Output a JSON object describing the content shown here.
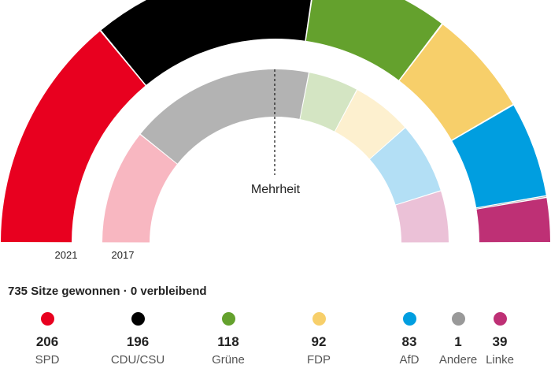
{
  "chart_data": {
    "type": "parliament-semicircle",
    "majority_label": "Mehrheit",
    "outer_ring_label": "2021",
    "inner_ring_label": "2017",
    "parties": [
      {
        "name": "SPD",
        "color": "#e8001f",
        "seats_2021": 206,
        "share_2017": 0.215
      },
      {
        "name": "CDU/CSU",
        "color": "#000000",
        "seats_2021": 196,
        "share_2017": 0.347
      },
      {
        "name": "Grüne",
        "color": "#64a12d",
        "seats_2021": 118,
        "share_2017": 0.094
      },
      {
        "name": "FDP",
        "color": "#f7cf6a",
        "seats_2021": 92,
        "share_2017": 0.113
      },
      {
        "name": "AfD",
        "color": "#009ee0",
        "seats_2021": 83,
        "share_2017": 0.134
      },
      {
        "name": "Andere",
        "color": "#999999",
        "seats_2021": 1,
        "share_2017": 0.0
      },
      {
        "name": "Linke",
        "color": "#be3075",
        "seats_2021": 39,
        "share_2017": 0.097
      }
    ],
    "inner_colors_2017": {
      "SPD": "#f8b7c1",
      "CDU/CSU": "#b3b3b3",
      "Grüne": "#d4e5c3",
      "FDP": "#fdf0cf",
      "AfD": "#b3dff5",
      "Andere": "#dddddd",
      "Linke": "#ebc1d7"
    }
  },
  "summary": "735 Sitze gewonnen · 0 verbleibend",
  "legend": [
    {
      "seats": "206",
      "label": "SPD",
      "color": "#e8001f"
    },
    {
      "seats": "196",
      "label": "CDU/CSU",
      "color": "#000000"
    },
    {
      "seats": "118",
      "label": "Grüne",
      "color": "#64a12d"
    },
    {
      "seats": "92",
      "label": "FDP",
      "color": "#f7cf6a"
    },
    {
      "seats": "83",
      "label": "AfD",
      "color": "#009ee0"
    },
    {
      "seats": "1",
      "label": "Andere",
      "color": "#999999"
    },
    {
      "seats": "39",
      "label": "Linke",
      "color": "#be3075"
    }
  ]
}
